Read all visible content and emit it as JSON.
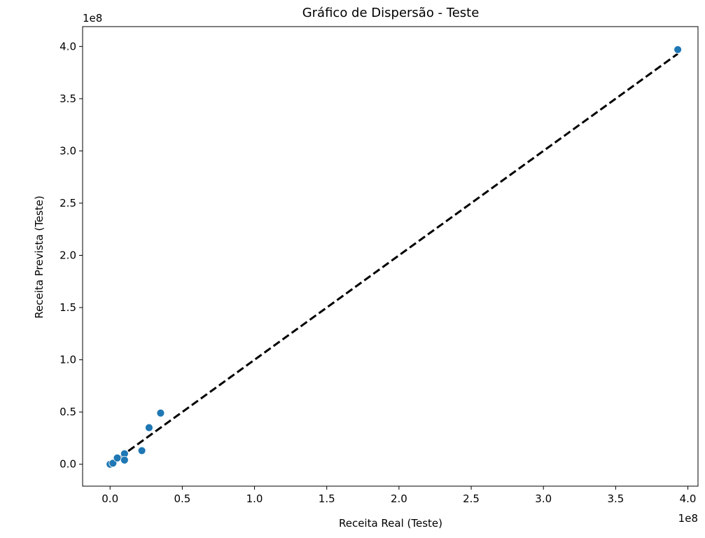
{
  "chart_data": {
    "type": "scatter",
    "title": "Gráfico de Dispersão - Teste",
    "xlabel": "Receita Real (Teste)",
    "ylabel": "Receita Prevista (Teste)",
    "x_offset_label": "1e8",
    "y_offset_label": "1e8",
    "xlim": [
      -0.19,
      4.07
    ],
    "ylim": [
      -0.21,
      4.19
    ],
    "xticks": [
      0.0,
      0.5,
      1.0,
      1.5,
      2.0,
      2.5,
      3.0,
      3.5,
      4.0
    ],
    "xtick_labels": [
      "0.0",
      "0.5",
      "1.0",
      "1.5",
      "2.0",
      "2.5",
      "3.0",
      "3.5",
      "4.0"
    ],
    "yticks": [
      0.0,
      0.5,
      1.0,
      1.5,
      2.0,
      2.5,
      3.0,
      3.5,
      4.0
    ],
    "ytick_labels": [
      "0.0",
      "0.5",
      "1.0",
      "1.5",
      "2.0",
      "2.5",
      "3.0",
      "3.5",
      "4.0"
    ],
    "grid": false,
    "point_color": "#1f77b4",
    "reference_line": {
      "style": "dashed",
      "color": "#000000",
      "from": [
        0.0,
        0.0
      ],
      "to": [
        3.93,
        3.93
      ]
    },
    "series": [
      {
        "points": [
          [
            0.0,
            0.0
          ],
          [
            0.02,
            0.01
          ],
          [
            0.05,
            0.06
          ],
          [
            0.1,
            0.1
          ],
          [
            0.1,
            0.04
          ],
          [
            0.22,
            0.13
          ],
          [
            0.27,
            0.35
          ],
          [
            0.35,
            0.49
          ],
          [
            3.93,
            3.97
          ]
        ]
      }
    ]
  }
}
